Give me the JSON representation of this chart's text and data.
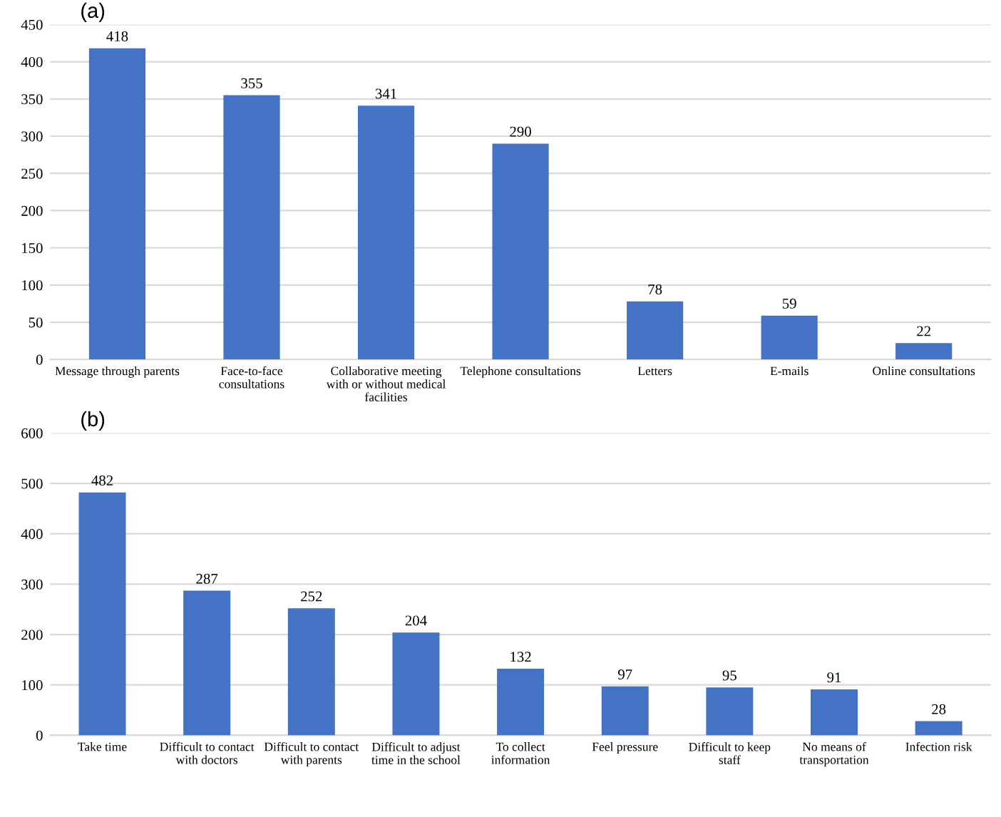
{
  "chart_data": [
    {
      "type": "bar",
      "title": "(a)",
      "categories": [
        "Message through parents",
        "Face-to-face\nconsultations",
        "Collaborative meeting\nwith or without medical\nfacilities",
        "Telephone consultations",
        "Letters",
        "E-mails",
        "Online consultations"
      ],
      "values": [
        418,
        355,
        341,
        290,
        78,
        59,
        22
      ],
      "color": "#4472c4",
      "ylim": [
        0,
        450
      ],
      "yticks": [
        0,
        50,
        100,
        150,
        200,
        250,
        300,
        350,
        400,
        450
      ],
      "grid": "y",
      "data_labels": true
    },
    {
      "type": "bar",
      "title": "(b)",
      "categories": [
        "Take time",
        "Difficult to contact\nwith doctors",
        "Difficult to contact\nwith parents",
        "Difficult to adjust\ntime in the school",
        "To collect\ninformation",
        "Feel pressure",
        "Difficult to keep\nstaff",
        "No means of\ntransportation",
        "Infection risk"
      ],
      "values": [
        482,
        287,
        252,
        204,
        132,
        97,
        95,
        91,
        28
      ],
      "color": "#4472c4",
      "ylim": [
        0,
        600
      ],
      "yticks": [
        0,
        100,
        200,
        300,
        400,
        500,
        600
      ],
      "grid": "y",
      "data_labels": true
    }
  ]
}
